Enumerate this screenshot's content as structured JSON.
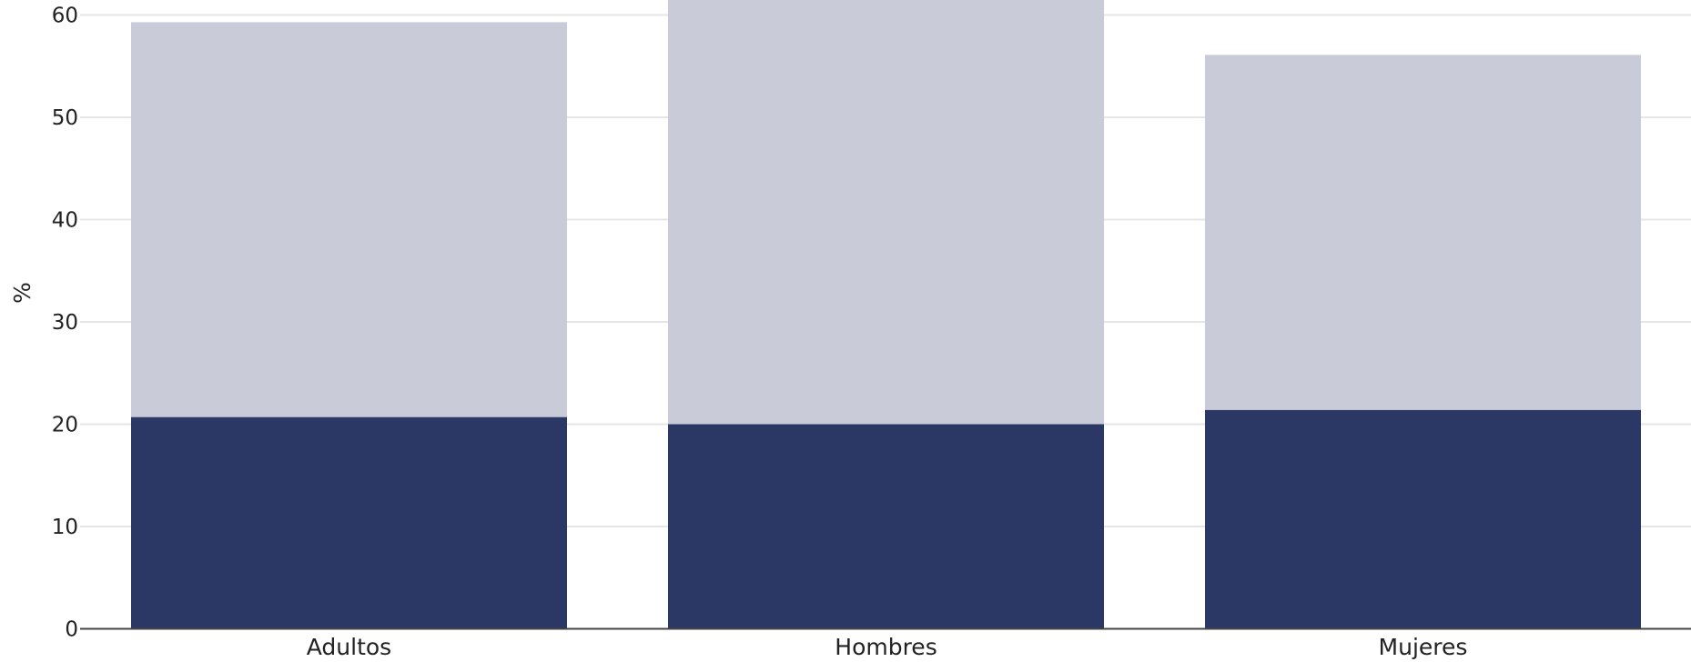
{
  "chart_data": {
    "type": "bar",
    "stacked": true,
    "categories": [
      "Adultos",
      "Hombres",
      "Mujeres"
    ],
    "series": [
      {
        "values": [
          20.7,
          20.0,
          21.4
        ],
        "color": "#2b3865"
      },
      {
        "values": [
          38.6,
          43.0,
          34.7
        ],
        "color": "#c9cbd8"
      }
    ],
    "title": "",
    "xlabel": "",
    "ylabel": "%",
    "ylim": [
      0,
      61.5
    ],
    "yticks": [
      0,
      10,
      20,
      30,
      40,
      50,
      60
    ],
    "grid": true,
    "legend": "none"
  }
}
